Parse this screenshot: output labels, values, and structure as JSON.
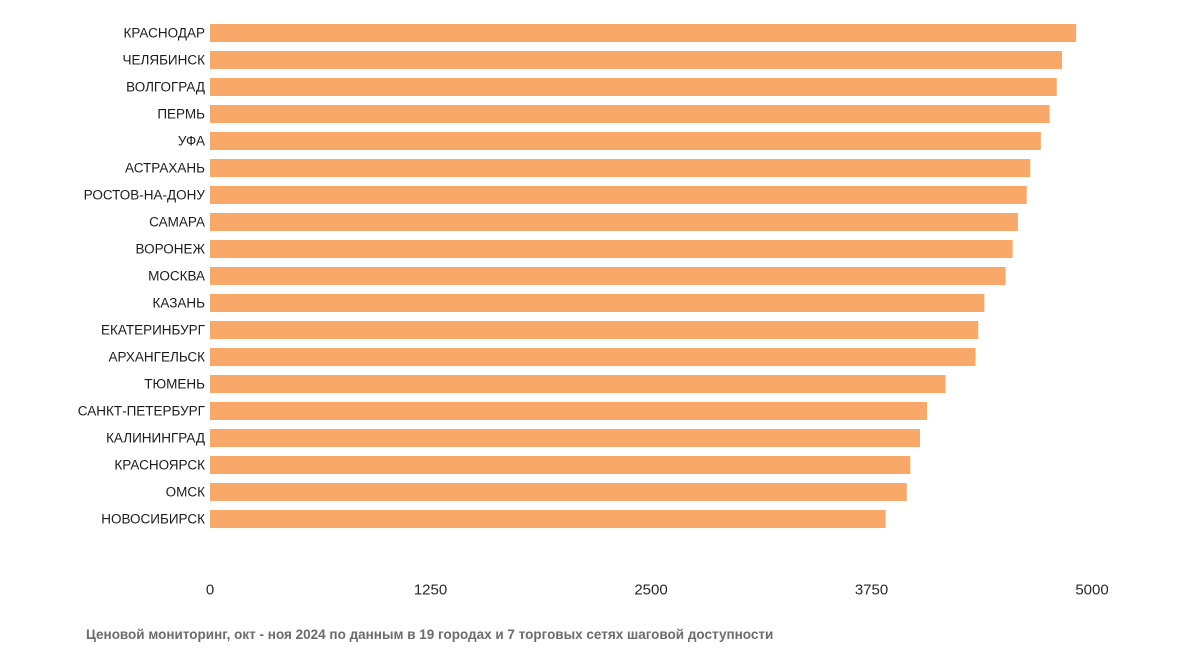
{
  "chart_data": {
    "type": "bar",
    "orientation": "horizontal",
    "categories": [
      "КРАСНОДАР",
      "ЧЕЛЯБИНСК",
      "ВОЛГОГРАД",
      "ПЕРМЬ",
      "УФА",
      "АСТРАХАНЬ",
      "РОСТОВ-НА-ДОНУ",
      "САМАРА",
      "ВОРОНЕЖ",
      "МОСКВА",
      "КАЗАНЬ",
      "ЕКАТЕРИНБУРГ",
      "АРХАНГЕЛЬСК",
      "ТЮМЕНЬ",
      "САНКТ-ПЕТЕРБУРГ",
      "КАЛИНИНГРАД",
      "КРАСНОЯРСК",
      "ОМСК",
      "НОВОСИБИРСК"
    ],
    "values": [
      4910,
      4830,
      4800,
      4760,
      4710,
      4650,
      4630,
      4580,
      4550,
      4510,
      4390,
      4355,
      4340,
      4170,
      4065,
      4025,
      3970,
      3950,
      3830
    ],
    "xlim": [
      0,
      5000
    ],
    "xticks": [
      0,
      1250,
      2500,
      3750,
      5000
    ],
    "xtick_labels": [
      "0",
      "1250",
      "2500",
      "3750",
      "5000"
    ],
    "title": "",
    "xlabel": "",
    "ylabel": "",
    "grid": false,
    "bar_color": "#F8A869",
    "caption": "Ценовой мониторинг, окт - ноя 2024 по данным в 19 городах и 7 торговых сетях шаговой доступности"
  }
}
